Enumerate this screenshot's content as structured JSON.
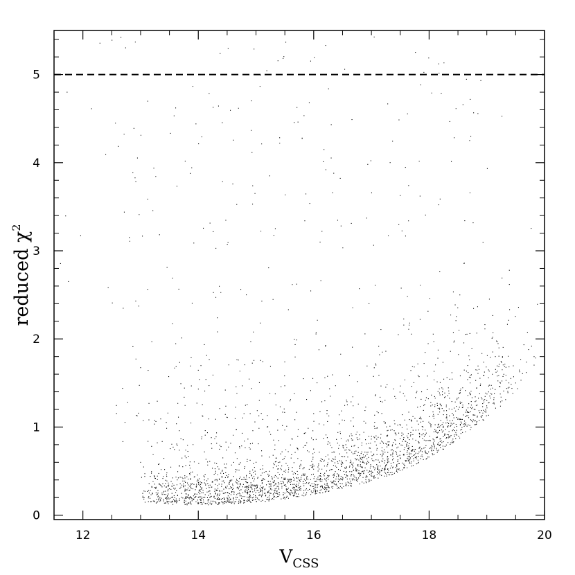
{
  "chart_data": {
    "type": "scatter",
    "title": "",
    "xlabel": "V",
    "xlabel_sub": "CSS",
    "ylabel": "reduced χ",
    "ylabel_sup": "2",
    "xlim": [
      11.5,
      20
    ],
    "ylim": [
      -0.05,
      5.5
    ],
    "x_ticks": [
      12,
      14,
      16,
      18,
      20
    ],
    "x_tick_labels": [
      "12",
      "14",
      "16",
      "18",
      "20"
    ],
    "y_ticks": [
      0,
      1,
      2,
      3,
      4,
      5
    ],
    "y_tick_labels": [
      "0",
      "1",
      "2",
      "3",
      "4",
      "5"
    ],
    "x_minor_step": 0.5,
    "y_minor_step": 0.2,
    "grid": false,
    "legend": "none",
    "reference_lines": [
      {
        "orientation": "horizontal",
        "y": 5,
        "style": "dashed"
      }
    ],
    "point_color": "#000000",
    "series": [
      {
        "description_of_density": "dense cloud of points; locus of minimum chi2 rises from about 0.15 near V=14.5 to about 1.3 near V=19",
        "x_range": [
          11.6,
          19.9
        ],
        "y_range": [
          0.05,
          5.5
        ],
        "sample_points": [
          [
            13.0,
            0.6
          ],
          [
            13.5,
            0.3
          ],
          [
            14.0,
            0.2
          ],
          [
            14.5,
            0.2
          ],
          [
            15.0,
            0.2
          ],
          [
            15.5,
            0.25
          ],
          [
            16.0,
            0.3
          ],
          [
            16.5,
            0.4
          ],
          [
            17.0,
            0.5
          ],
          [
            17.5,
            0.65
          ],
          [
            18.0,
            0.85
          ],
          [
            18.5,
            1.1
          ],
          [
            19.0,
            1.3
          ],
          [
            19.5,
            1.5
          ]
        ]
      }
    ]
  }
}
